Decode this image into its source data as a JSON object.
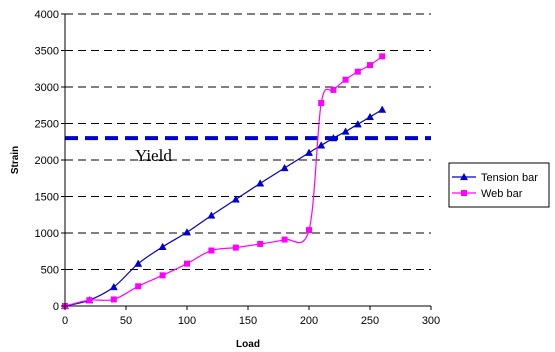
{
  "chart_data": {
    "type": "line",
    "title": "",
    "xlabel": "Load",
    "ylabel": "Strain",
    "xlim": [
      0,
      300
    ],
    "ylim": [
      0,
      4000
    ],
    "x_ticks": [
      0,
      50,
      100,
      150,
      200,
      250,
      300
    ],
    "y_ticks": [
      0,
      500,
      1000,
      1500,
      2000,
      2500,
      3000,
      3500,
      4000
    ],
    "grid": "horizontal dashed",
    "legend_position": "right",
    "series": [
      {
        "name": "Tension bar",
        "marker": "triangle",
        "color": "#0000CC",
        "x": [
          0,
          20,
          40,
          60,
          80,
          100,
          120,
          140,
          160,
          180,
          200,
          210,
          220,
          230,
          240,
          250,
          260
        ],
        "y": [
          0,
          80,
          260,
          580,
          810,
          1010,
          1240,
          1460,
          1680,
          1890,
          2100,
          2200,
          2300,
          2390,
          2490,
          2590,
          2690
        ]
      },
      {
        "name": "Web bar",
        "marker": "square",
        "color": "#FF00FF",
        "x": [
          0,
          20,
          40,
          60,
          80,
          100,
          120,
          140,
          160,
          180,
          200,
          210,
          220,
          230,
          240,
          250,
          260
        ],
        "y": [
          0,
          80,
          90,
          270,
          420,
          580,
          760,
          800,
          850,
          910,
          1040,
          2780,
          2960,
          3100,
          3210,
          3300,
          3420
        ]
      }
    ],
    "reference_line": {
      "label": "Yield",
      "y": 2300,
      "color": "#0000CC",
      "style": "dashed"
    }
  }
}
